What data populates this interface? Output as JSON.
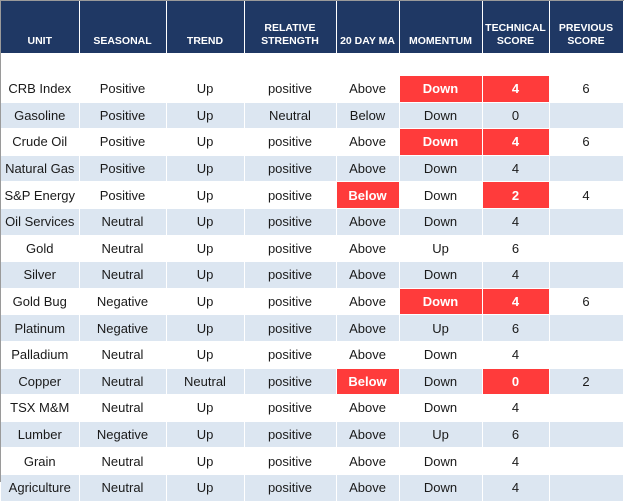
{
  "table": {
    "header": [
      "UNIT",
      "SEASONAL",
      "TREND",
      "RELATIVE STRENGTH",
      "20 DAY MA",
      "MOMENTUM",
      "TECHNICAL SCORE",
      "PREVIOUS SCORE"
    ],
    "header_color": "#1f3864",
    "stripe_color": "#dce6f1",
    "highlight_color": "#ff3b3b",
    "rows": [
      {
        "cells": [
          "CRB Index",
          "Positive",
          "Up",
          "positive",
          "Above",
          "Down",
          4,
          6
        ],
        "highlight": [
          5,
          6
        ]
      },
      {
        "cells": [
          "Gasoline",
          "Positive",
          "Up",
          "Neutral",
          "Below",
          "Down",
          0,
          null
        ],
        "highlight": []
      },
      {
        "cells": [
          "Crude Oil",
          "Positive",
          "Up",
          "positive",
          "Above",
          "Down",
          4,
          6
        ],
        "highlight": [
          5,
          6
        ]
      },
      {
        "cells": [
          "Natural Gas",
          "Positive",
          "Up",
          "positive",
          "Above",
          "Down",
          4,
          null
        ],
        "highlight": []
      },
      {
        "cells": [
          "S&P Energy",
          "Positive",
          "Up",
          "positive",
          "Below",
          "Down",
          2,
          4
        ],
        "highlight": [
          4,
          6
        ]
      },
      {
        "cells": [
          "Oil Services",
          "Neutral",
          "Up",
          "positive",
          "Above",
          "Down",
          4,
          null
        ],
        "highlight": []
      },
      {
        "cells": [
          "Gold",
          "Neutral",
          "Up",
          "positive",
          "Above",
          "Up",
          6,
          null
        ],
        "highlight": []
      },
      {
        "cells": [
          "Silver",
          "Neutral",
          "Up",
          "positive",
          "Above",
          "Down",
          4,
          null
        ],
        "highlight": []
      },
      {
        "cells": [
          "Gold Bug",
          "Negative",
          "Up",
          "positive",
          "Above",
          "Down",
          4,
          6
        ],
        "highlight": [
          5,
          6
        ]
      },
      {
        "cells": [
          "Platinum",
          "Negative",
          "Up",
          "positive",
          "Above",
          "Up",
          6,
          null
        ],
        "highlight": []
      },
      {
        "cells": [
          "Palladium",
          "Neutral",
          "Up",
          "positive",
          "Above",
          "Down",
          4,
          null
        ],
        "highlight": []
      },
      {
        "cells": [
          "Copper",
          "Neutral",
          "Neutral",
          "positive",
          "Below",
          "Down",
          0,
          2
        ],
        "highlight": [
          4,
          6
        ]
      },
      {
        "cells": [
          "TSX M&M",
          "Neutral",
          "Up",
          "positive",
          "Above",
          "Down",
          4,
          null
        ],
        "highlight": []
      },
      {
        "cells": [
          "Lumber",
          "Negative",
          "Up",
          "positive",
          "Above",
          "Up",
          6,
          null
        ],
        "highlight": []
      },
      {
        "cells": [
          "Grain",
          "Neutral",
          "Up",
          "positive",
          "Above",
          "Down",
          4,
          null
        ],
        "highlight": []
      },
      {
        "cells": [
          "Agriculture",
          "Neutral",
          "Up",
          "positive",
          "Above",
          "Down",
          4,
          null
        ],
        "highlight": []
      }
    ]
  }
}
